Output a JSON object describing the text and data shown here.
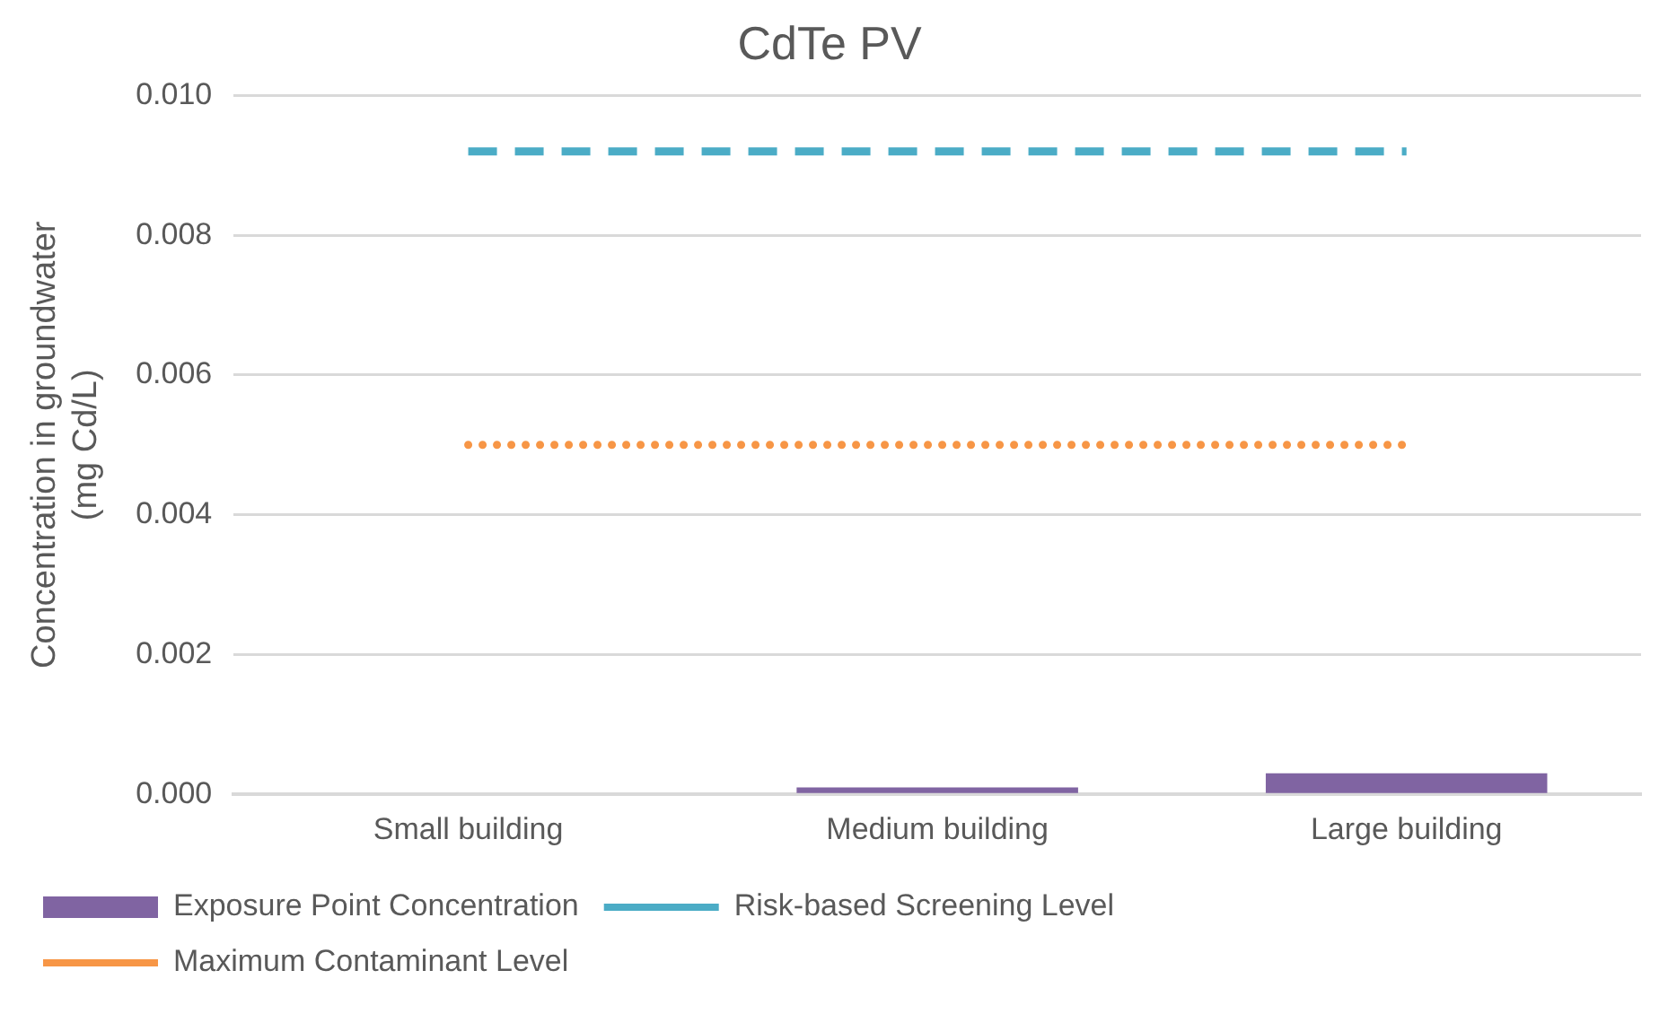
{
  "chart_data": {
    "type": "bar",
    "title": "CdTe PV",
    "ylabel": "Concentration in groundwater\n(mg Cd/L)",
    "categories": [
      "Small building",
      "Medium building",
      "Large building"
    ],
    "series": [
      {
        "name": "Exposure Point Concentration",
        "color": "#8064a2",
        "values": [
          0,
          0.0001,
          0.0003
        ]
      },
      {
        "name": "Risk-based Screening Level",
        "type": "line",
        "line_style": "dashed",
        "color": "#4bacc6",
        "values": [
          0.0092,
          0.0092,
          0.0092
        ]
      },
      {
        "name": "Maximum Contaminant Level",
        "type": "line",
        "line_style": "dotted",
        "color": "#f79646",
        "values": [
          0.005,
          0.005,
          0.005
        ]
      }
    ],
    "ylim": [
      0,
      0.01
    ],
    "yticks": [
      {
        "value": 0,
        "label": "0.000"
      },
      {
        "value": 0.002,
        "label": "0.002"
      },
      {
        "value": 0.004,
        "label": "0.004"
      },
      {
        "value": 0.006,
        "label": "0.006"
      },
      {
        "value": 0.008,
        "label": "0.008"
      },
      {
        "value": 0.01,
        "label": "0.010"
      }
    ],
    "grid": "y",
    "legend": "bottom",
    "marker": "none"
  }
}
